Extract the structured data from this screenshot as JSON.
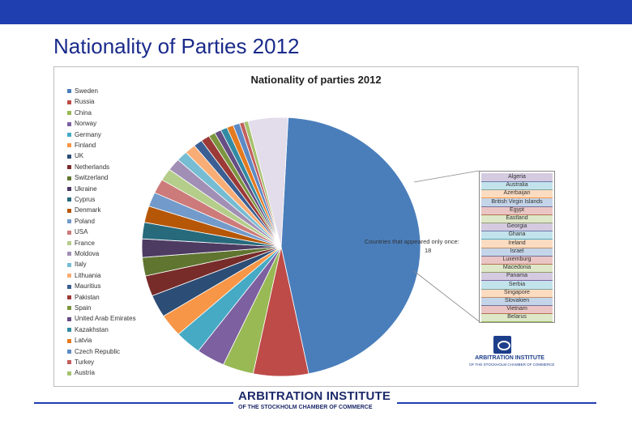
{
  "slide": {
    "title": "Nationality of Parties 2012",
    "bar_color": "#1f3fb0"
  },
  "footer": {
    "logo_line1": "ARBITRATION INSTITUTE",
    "logo_line2": "OF THE STOCKHOLM CHAMBER OF COMMERCE"
  },
  "inset_logo": {
    "line1": "ARBITRATION INSTITUTE",
    "line2": "OF THE STOCKHOLM CHAMBER OF COMMERCE"
  },
  "chart_data": {
    "type": "pie",
    "title": "Nationality of parties 2012",
    "legend_position": "left",
    "series": [
      {
        "name": "Sweden",
        "value": 180,
        "color": "#4a7ebb"
      },
      {
        "name": "Russia",
        "value": 25,
        "color": "#be4b48"
      },
      {
        "name": "China",
        "value": 14,
        "color": "#98b954"
      },
      {
        "name": "Norway",
        "value": 13,
        "color": "#7d60a0"
      },
      {
        "name": "Germany",
        "value": 12,
        "color": "#46aac5"
      },
      {
        "name": "Finland",
        "value": 11,
        "color": "#f79646"
      },
      {
        "name": "UK",
        "value": 11,
        "color": "#2c4d75"
      },
      {
        "name": "Netherlands",
        "value": 10,
        "color": "#772c2a"
      },
      {
        "name": "Switzerland",
        "value": 9,
        "color": "#5f7530"
      },
      {
        "name": "Ukraine",
        "value": 9,
        "color": "#4d3b62"
      },
      {
        "name": "Cyprus",
        "value": 8,
        "color": "#276a7c"
      },
      {
        "name": "Denmark",
        "value": 8,
        "color": "#b65708"
      },
      {
        "name": "Poland",
        "value": 7,
        "color": "#729aca"
      },
      {
        "name": "USA",
        "value": 7,
        "color": "#cc7b7a"
      },
      {
        "name": "France",
        "value": 6,
        "color": "#b5cd8a"
      },
      {
        "name": "Moldova",
        "value": 6,
        "color": "#a18fb5"
      },
      {
        "name": "Italy",
        "value": 5,
        "color": "#76bcd2"
      },
      {
        "name": "Lithuania",
        "value": 5,
        "color": "#f9ad76"
      },
      {
        "name": "Mauritius",
        "value": 4,
        "color": "#3b5f93"
      },
      {
        "name": "Pakistan",
        "value": 4,
        "color": "#9c3a37"
      },
      {
        "name": "Spain",
        "value": 3,
        "color": "#7c963f"
      },
      {
        "name": "United Arab Emirates",
        "value": 3,
        "color": "#664d83"
      },
      {
        "name": "Kazakhstan",
        "value": 3,
        "color": "#338ba3"
      },
      {
        "name": "Latvia",
        "value": 3,
        "color": "#e57a1f"
      },
      {
        "name": "Czech Republic",
        "value": 3,
        "color": "#5d8ac5"
      },
      {
        "name": "Turkey",
        "value": 2,
        "color": "#c25f5c"
      },
      {
        "name": "Austria",
        "value": 2,
        "color": "#a6c26e"
      },
      {
        "name": "Countries that appeared only once: 18",
        "value": 18,
        "color": "#e3dcea"
      }
    ],
    "breakout": {
      "label": "Countries that appeared only once: 18",
      "countries": [
        "Algeria",
        "Australia",
        "Azerbaijan",
        "British Virgin Islands",
        "Egypt",
        "Eastland",
        "Georgia",
        "Ghana",
        "Ireland",
        "Israel",
        "Luxemburg",
        "Macedonia",
        "Panama",
        "Serbia",
        "Singapore",
        "Slovakien",
        "Vietnam",
        "Belarus"
      ],
      "colors": [
        "#8064a2",
        "#4bacc6",
        "#f79646",
        "#4f81bd",
        "#c0504d",
        "#9bbb59",
        "#8064a2",
        "#4bacc6",
        "#f79646",
        "#4f81bd",
        "#c0504d",
        "#9bbb59",
        "#8064a2",
        "#4bacc6",
        "#f79646",
        "#4f81bd",
        "#c0504d",
        "#9bbb59"
      ]
    }
  }
}
